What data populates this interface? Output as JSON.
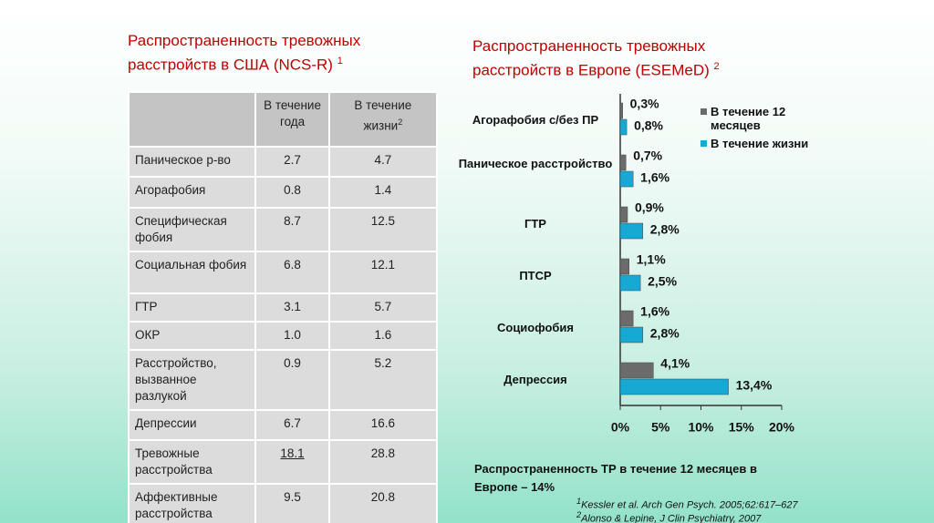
{
  "left_title": {
    "text": "Распространенность тревожных расстройств в США (NCS-R)",
    "sup": "1"
  },
  "table": {
    "header": [
      {
        "text": "",
        "sup": ""
      },
      {
        "text": "В течение года",
        "sup": ""
      },
      {
        "text": "В течение жизни",
        "sup": "2"
      }
    ],
    "rows": [
      [
        "Паническое р-во",
        "2.7",
        "4.7"
      ],
      [
        "Агорафобия",
        "0.8",
        "1.4"
      ],
      [
        "Специфическая фобия",
        "8.7",
        "12.5"
      ],
      [
        "Социальная фобия",
        "6.8",
        "12.1"
      ],
      [
        "ГТР",
        "3.1",
        "5.7"
      ],
      [
        "ОКР",
        "1.0",
        "1.6"
      ],
      [
        "Расстройство, вызванное разлукой",
        "0.9",
        "5.2"
      ],
      [
        "Депрессии",
        "6.7",
        "16.6"
      ],
      [
        "Тревожные расстройства",
        "18.1",
        "28.8"
      ],
      [
        "Аффективные расстройства",
        "9.5",
        "20.8"
      ]
    ]
  },
  "chart_data": {
    "type": "hbar",
    "title": "Распространенность тревожных расстройств в Европе  (ESEMeD)",
    "title_sup": "2",
    "categories": [
      "Агорафобия с/без ПР",
      "Паническое расстройство",
      "ГТР",
      "ПТСР",
      "Социофобия",
      "Депрессия"
    ],
    "series": [
      {
        "name": "В течение 12 месяцев",
        "color": "#6b6b6b",
        "values": [
          0.3,
          0.7,
          0.9,
          1.1,
          1.6,
          4.1
        ],
        "value_labels": [
          "0,3%",
          "0,7%",
          "0,9%",
          "1,1%",
          "1,6%",
          "4,1%"
        ]
      },
      {
        "name": "В течение жизни",
        "color": "#17a9d4",
        "values": [
          0.8,
          1.6,
          2.8,
          2.5,
          2.8,
          13.4
        ],
        "value_labels": [
          "0,8%",
          "1,6%",
          "2,8%",
          "2,5%",
          "2,8%",
          "13,4%"
        ]
      }
    ],
    "xlim": [
      0,
      20
    ],
    "xticks": [
      {
        "value": 0,
        "label": "0%"
      },
      {
        "value": 5,
        "label": "5%"
      },
      {
        "value": 10,
        "label": "10%"
      },
      {
        "value": 15,
        "label": "15%"
      },
      {
        "value": 20,
        "label": "20%"
      }
    ]
  },
  "note": "Распространенность ТР в течение 12 месяцев в Европе – 14%",
  "footnotes": [
    {
      "sup": "1",
      "text": "Kessler et al. Arch Gen Psych. 2005;62:617–627"
    },
    {
      "sup": "2",
      "text": "Alonso & Lepine, J Clin Psychiatry, 2007"
    }
  ]
}
